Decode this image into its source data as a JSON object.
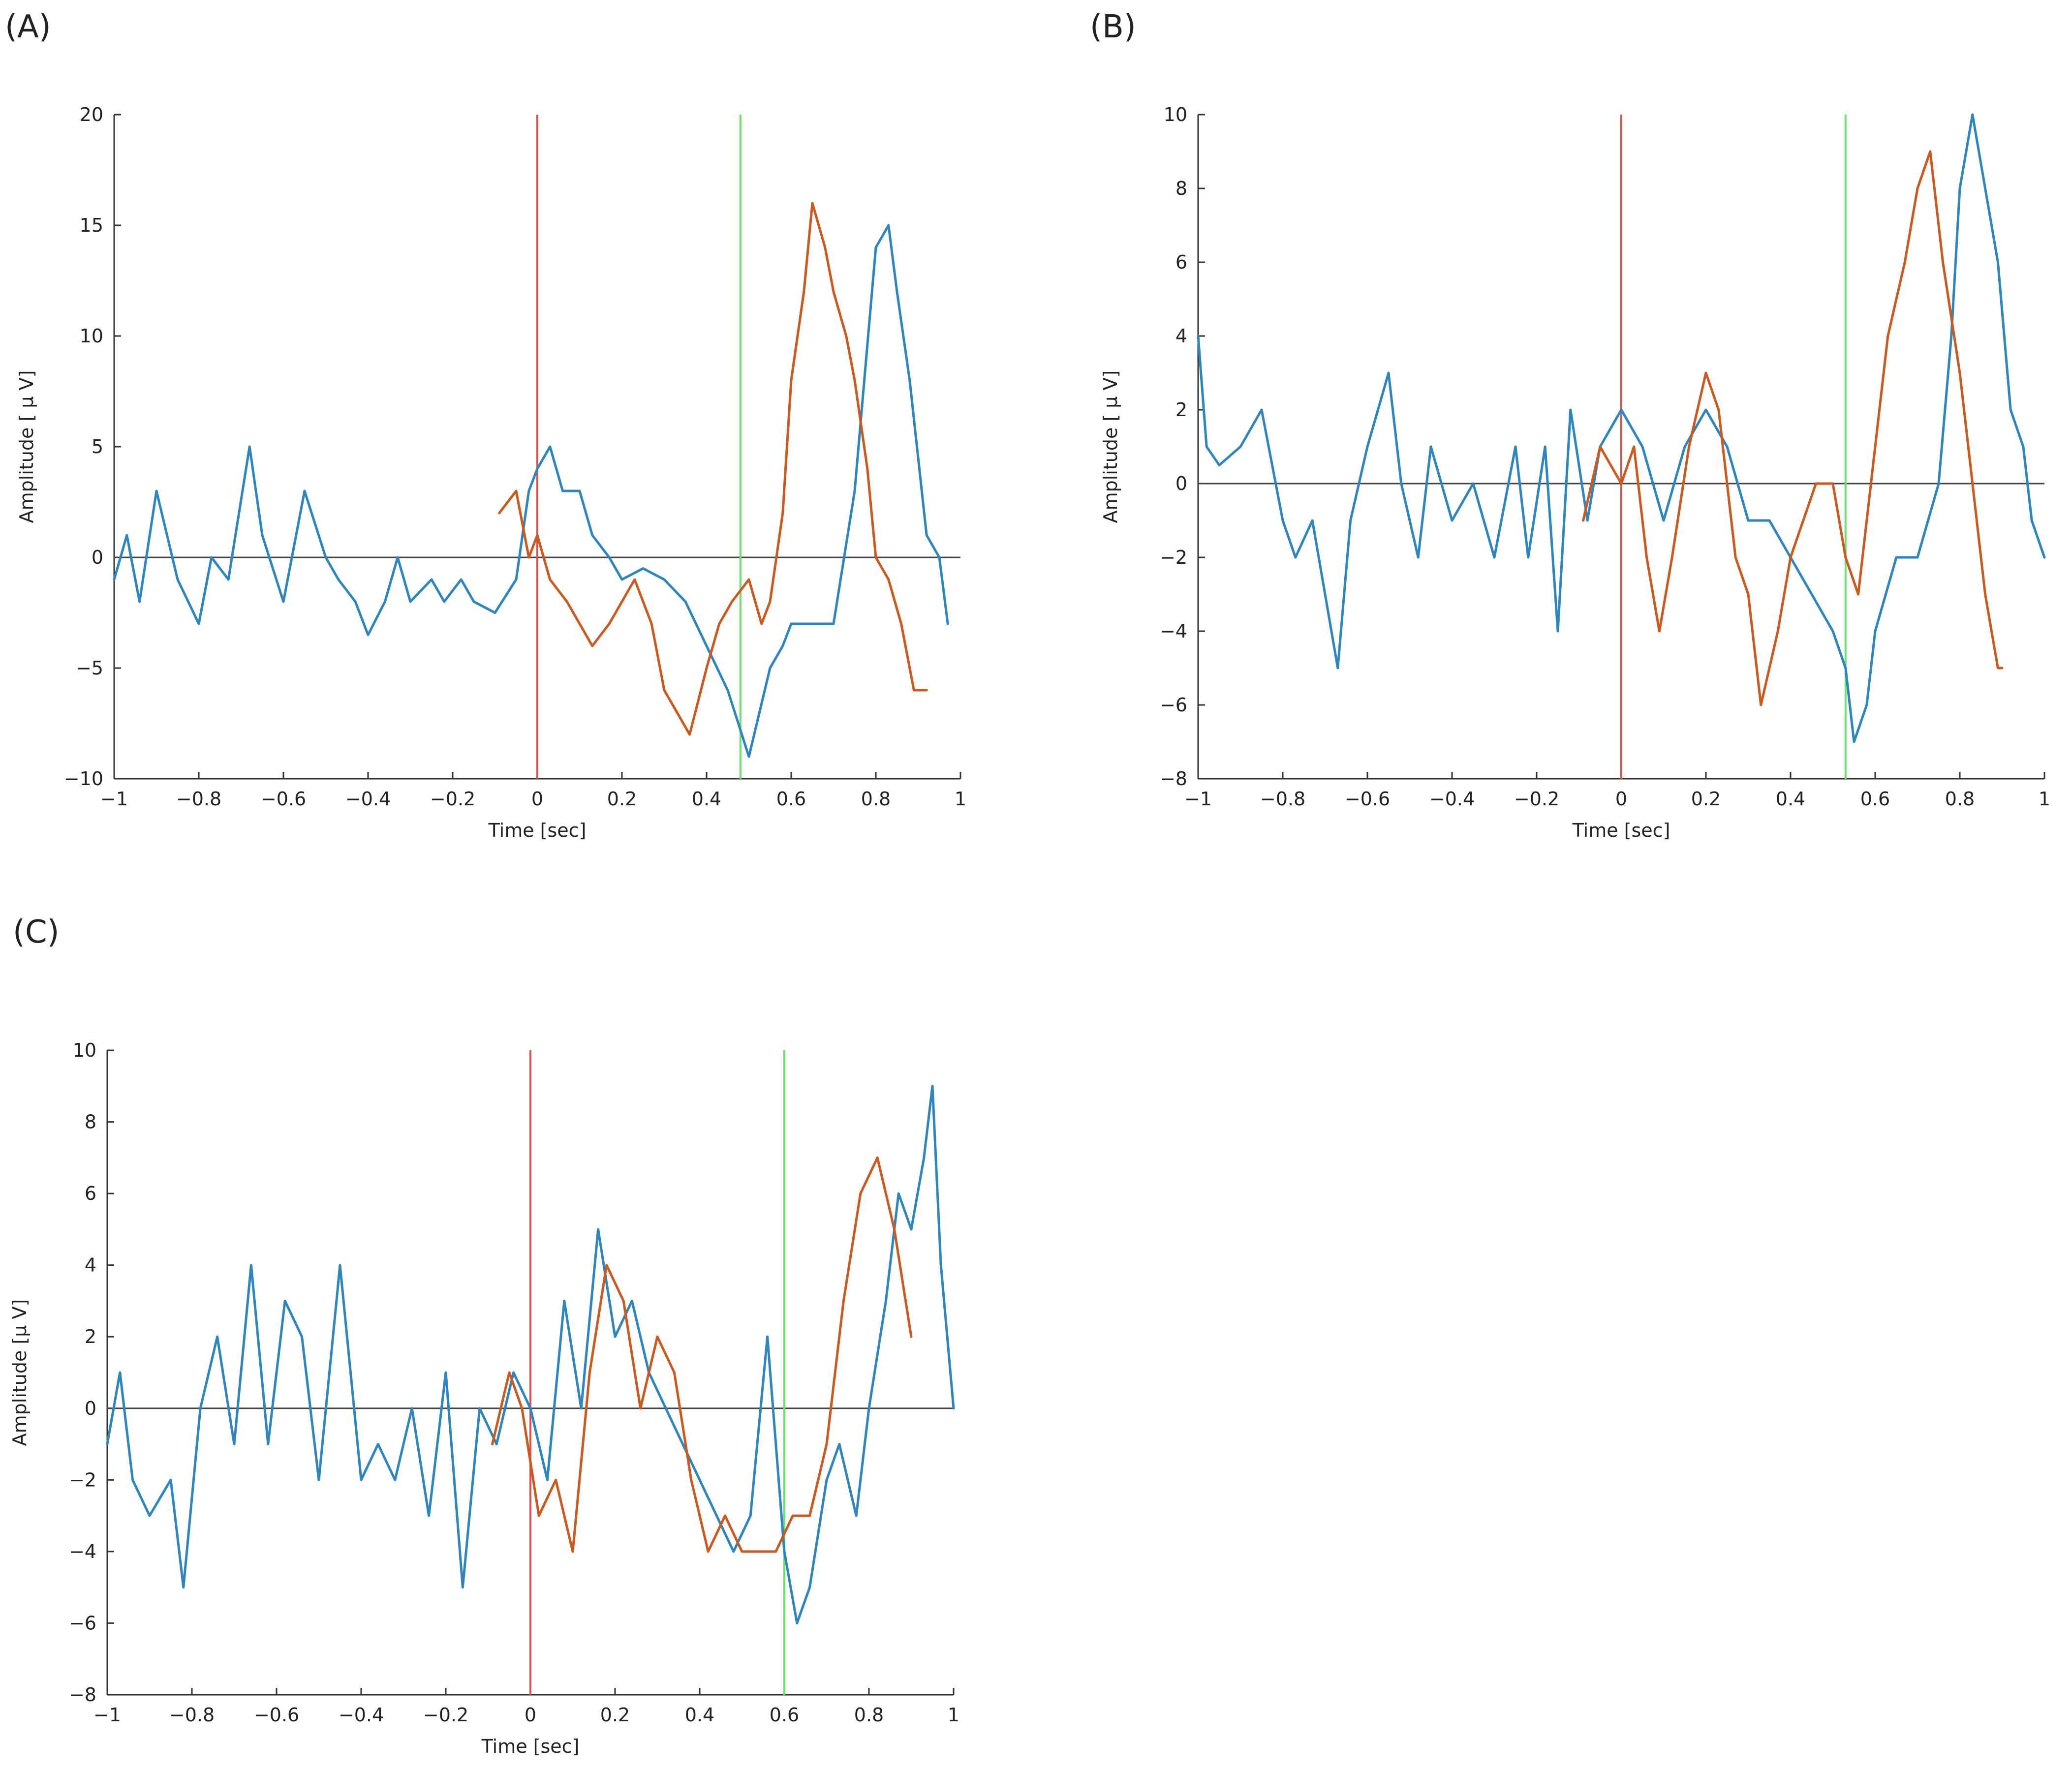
{
  "panels": [
    {
      "label": "(A)",
      "chart_data": {
        "type": "line",
        "xlabel": "Time [sec]",
        "ylabel": "Amplitude [ μ V]",
        "xlim": [
          -1,
          1
        ],
        "ylim": [
          -10,
          20
        ],
        "xticks": [
          -1,
          -0.8,
          -0.6,
          -0.4,
          -0.2,
          0,
          0.2,
          0.4,
          0.6,
          0.8,
          1
        ],
        "xtick_labels": [
          "−1",
          "−0.8",
          "−0.6",
          "−0.4",
          "−0.2",
          "0",
          "0.2",
          "0.4",
          "0.6",
          "0.8",
          "1"
        ],
        "yticks": [
          -10,
          -5,
          0,
          5,
          10,
          15,
          20
        ],
        "ytick_labels": [
          "−10",
          "−5",
          "0",
          "5",
          "10",
          "15",
          "20"
        ],
        "zero_line": 0,
        "vlines": [
          {
            "name": "onset",
            "x": 0,
            "color": "#d9534f"
          },
          {
            "name": "marker",
            "x": 0.48,
            "color": "#6ee06e"
          }
        ],
        "series": [
          {
            "name": "blue",
            "color": "#2e86c1",
            "x": [
              -1,
              -0.97,
              -0.94,
              -0.9,
              -0.85,
              -0.8,
              -0.77,
              -0.73,
              -0.68,
              -0.65,
              -0.6,
              -0.58,
              -0.55,
              -0.5,
              -0.47,
              -0.43,
              -0.4,
              -0.36,
              -0.33,
              -0.3,
              -0.25,
              -0.22,
              -0.18,
              -0.15,
              -0.1,
              -0.05,
              -0.02,
              0,
              0.03,
              0.06,
              0.1,
              0.13,
              0.17,
              0.2,
              0.25,
              0.3,
              0.35,
              0.4,
              0.45,
              0.5,
              0.55,
              0.58,
              0.6,
              0.65,
              0.7,
              0.75,
              0.8,
              0.83,
              0.85,
              0.88,
              0.92,
              0.95,
              0.97
            ],
            "y": [
              -1,
              1,
              -2,
              3,
              -1,
              -3,
              0,
              -1,
              5,
              1,
              -2,
              0,
              3,
              0,
              -1,
              -2,
              -3.5,
              -2,
              0,
              -2,
              -1,
              -2,
              -1,
              -2,
              -2.5,
              -1,
              3,
              4,
              5,
              3,
              3,
              1,
              0,
              -1,
              -0.5,
              -1,
              -2,
              -4,
              -6,
              -9,
              -5,
              -4,
              -3,
              -3,
              -3,
              3,
              14,
              15,
              12,
              8,
              1,
              0,
              -3
            ]
          },
          {
            "name": "orange",
            "color": "#cc5a1f",
            "x": [
              -0.09,
              -0.05,
              -0.02,
              0,
              0.03,
              0.07,
              0.1,
              0.13,
              0.17,
              0.2,
              0.23,
              0.27,
              0.3,
              0.33,
              0.36,
              0.4,
              0.43,
              0.46,
              0.5,
              0.53,
              0.55,
              0.58,
              0.6,
              0.63,
              0.65,
              0.68,
              0.7,
              0.73,
              0.75,
              0.78,
              0.8,
              0.83,
              0.86,
              0.89,
              0.92
            ],
            "y": [
              2,
              3,
              0,
              1,
              -1,
              -2,
              -3,
              -4,
              -3,
              -2,
              -1,
              -3,
              -6,
              -7,
              -8,
              -5,
              -3,
              -2,
              -1,
              -3,
              -2,
              2,
              8,
              12,
              16,
              14,
              12,
              10,
              8,
              4,
              0,
              -1,
              -3,
              -6,
              -6
            ]
          }
        ]
      }
    },
    {
      "label": "(B)",
      "chart_data": {
        "type": "line",
        "xlabel": "Time [sec]",
        "ylabel": "Amplitude [ μ V]",
        "xlim": [
          -1,
          1
        ],
        "ylim": [
          -8,
          10
        ],
        "xticks": [
          -1,
          -0.8,
          -0.6,
          -0.4,
          -0.2,
          0,
          0.2,
          0.4,
          0.6,
          0.8,
          1
        ],
        "xtick_labels": [
          "−1",
          "−0.8",
          "−0.6",
          "−0.4",
          "−0.2",
          "0",
          "0.2",
          "0.4",
          "0.6",
          "0.8",
          "1"
        ],
        "yticks": [
          -8,
          -6,
          -4,
          -2,
          0,
          2,
          4,
          6,
          8,
          10
        ],
        "ytick_labels": [
          "−8",
          "−6",
          "−4",
          "−2",
          "0",
          "2",
          "4",
          "6",
          "8",
          "10"
        ],
        "zero_line": 0,
        "vlines": [
          {
            "name": "onset",
            "x": 0,
            "color": "#d9534f"
          },
          {
            "name": "marker",
            "x": 0.53,
            "color": "#6ee06e"
          }
        ],
        "series": [
          {
            "name": "blue",
            "color": "#2e86c1",
            "x": [
              -1,
              -0.98,
              -0.95,
              -0.9,
              -0.85,
              -0.8,
              -0.77,
              -0.73,
              -0.7,
              -0.67,
              -0.64,
              -0.6,
              -0.55,
              -0.52,
              -0.48,
              -0.45,
              -0.4,
              -0.35,
              -0.3,
              -0.25,
              -0.22,
              -0.18,
              -0.15,
              -0.12,
              -0.08,
              -0.05,
              0,
              0.05,
              0.1,
              0.15,
              0.2,
              0.25,
              0.3,
              0.35,
              0.4,
              0.45,
              0.5,
              0.53,
              0.55,
              0.58,
              0.6,
              0.65,
              0.7,
              0.75,
              0.78,
              0.8,
              0.83,
              0.86,
              0.89,
              0.92,
              0.95,
              0.97,
              1
            ],
            "y": [
              4,
              1,
              0.5,
              1,
              2,
              -1,
              -2,
              -1,
              -3,
              -5,
              -1,
              1,
              3,
              0,
              -2,
              1,
              -1,
              0,
              -2,
              1,
              -2,
              1,
              -4,
              2,
              -1,
              1,
              2,
              1,
              -1,
              1,
              2,
              1,
              -1,
              -1,
              -2,
              -3,
              -4,
              -5,
              -7,
              -6,
              -4,
              -2,
              -2,
              0,
              4,
              8,
              10,
              8,
              6,
              2,
              1,
              -1,
              -2
            ]
          },
          {
            "name": "orange",
            "color": "#cc5a1f",
            "x": [
              -0.09,
              -0.05,
              0,
              0.03,
              0.06,
              0.09,
              0.12,
              0.16,
              0.2,
              0.23,
              0.27,
              0.3,
              0.33,
              0.37,
              0.4,
              0.43,
              0.46,
              0.5,
              0.53,
              0.56,
              0.6,
              0.63,
              0.67,
              0.7,
              0.73,
              0.76,
              0.8,
              0.83,
              0.86,
              0.89,
              0.9
            ],
            "y": [
              -1,
              1,
              0,
              1,
              -2,
              -4,
              -2,
              1,
              3,
              2,
              -2,
              -3,
              -6,
              -4,
              -2,
              -1,
              0,
              0,
              -2,
              -3,
              1,
              4,
              6,
              8,
              9,
              6,
              3,
              0,
              -3,
              -5,
              -5
            ]
          }
        ]
      }
    },
    {
      "label": "(C)",
      "chart_data": {
        "type": "line",
        "xlabel": "Time [sec]",
        "ylabel": "Amplitude [μ V]",
        "xlim": [
          -1,
          1
        ],
        "ylim": [
          -8,
          10
        ],
        "xticks": [
          -1,
          -0.8,
          -0.6,
          -0.4,
          -0.2,
          0,
          0.2,
          0.4,
          0.6,
          0.8,
          1
        ],
        "xtick_labels": [
          "−1",
          "−0.8",
          "−0.6",
          "−0.4",
          "−0.2",
          "0",
          "0.2",
          "0.4",
          "0.6",
          "0.8",
          "1"
        ],
        "yticks": [
          -8,
          -6,
          -4,
          -2,
          0,
          2,
          4,
          6,
          8,
          10
        ],
        "ytick_labels": [
          "−8",
          "−6",
          "−4",
          "−2",
          "0",
          "2",
          "4",
          "6",
          "8",
          "10"
        ],
        "zero_line": 0,
        "vlines": [
          {
            "name": "onset",
            "x": 0,
            "color": "#d9534f"
          },
          {
            "name": "marker",
            "x": 0.6,
            "color": "#6ee06e"
          }
        ],
        "series": [
          {
            "name": "blue",
            "color": "#2e86c1",
            "x": [
              -1,
              -0.97,
              -0.94,
              -0.9,
              -0.85,
              -0.82,
              -0.78,
              -0.74,
              -0.7,
              -0.66,
              -0.62,
              -0.58,
              -0.54,
              -0.5,
              -0.45,
              -0.4,
              -0.36,
              -0.32,
              -0.28,
              -0.24,
              -0.2,
              -0.16,
              -0.12,
              -0.08,
              -0.04,
              0,
              0.04,
              0.08,
              0.12,
              0.16,
              0.2,
              0.24,
              0.28,
              0.32,
              0.36,
              0.4,
              0.44,
              0.48,
              0.52,
              0.56,
              0.6,
              0.63,
              0.66,
              0.7,
              0.73,
              0.77,
              0.8,
              0.84,
              0.87,
              0.9,
              0.93,
              0.95,
              0.97,
              1
            ],
            "y": [
              -1,
              1,
              -2,
              -3,
              -2,
              -5,
              0,
              2,
              -1,
              4,
              -1,
              3,
              2,
              -2,
              4,
              -2,
              -1,
              -2,
              0,
              -3,
              1,
              -5,
              0,
              -1,
              1,
              0,
              -2,
              3,
              0,
              5,
              2,
              3,
              1,
              0,
              -1,
              -2,
              -3,
              -4,
              -3,
              2,
              -4,
              -6,
              -5,
              -2,
              -1,
              -3,
              0,
              3,
              6,
              5,
              7,
              9,
              4,
              0
            ]
          },
          {
            "name": "orange",
            "color": "#cc5a1f",
            "x": [
              -0.09,
              -0.05,
              -0.02,
              0.02,
              0.06,
              0.1,
              0.14,
              0.18,
              0.22,
              0.26,
              0.3,
              0.34,
              0.38,
              0.42,
              0.46,
              0.5,
              0.54,
              0.58,
              0.62,
              0.66,
              0.7,
              0.74,
              0.78,
              0.82,
              0.86,
              0.9
            ],
            "y": [
              -1,
              1,
              0,
              -3,
              -2,
              -4,
              1,
              4,
              3,
              0,
              2,
              1,
              -2,
              -4,
              -3,
              -4,
              -4,
              -4,
              -3,
              -3,
              -1,
              3,
              6,
              7,
              5,
              2
            ]
          }
        ]
      }
    }
  ]
}
